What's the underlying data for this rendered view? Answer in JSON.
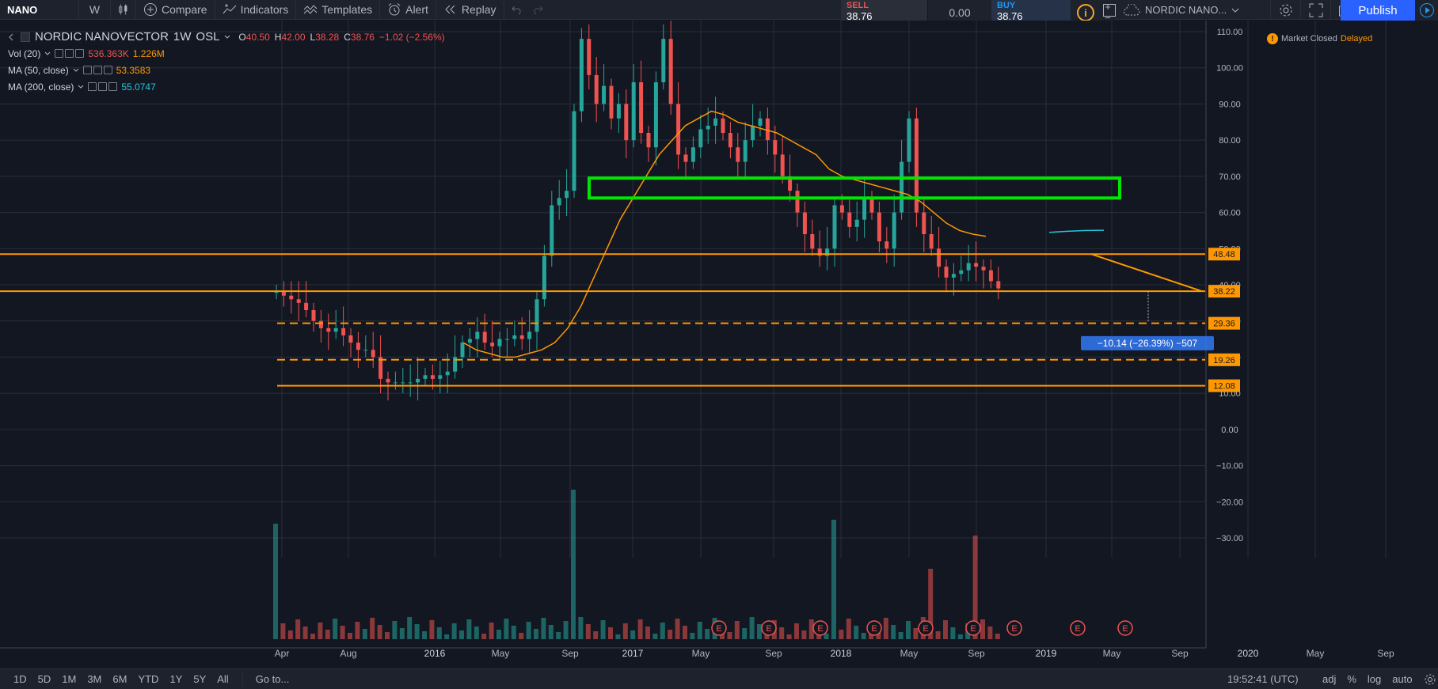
{
  "toolbar": {
    "symbol": "NANO",
    "interval": "W",
    "compare": "Compare",
    "indicators": "Indicators",
    "templates": "Templates",
    "alert": "Alert",
    "replay": "Replay"
  },
  "trade": {
    "sell_label": "SELL",
    "sell_price": "38.76",
    "spread": "0.00",
    "buy_label": "BUY",
    "buy_price": "38.76",
    "plus": "+",
    "minus": "−"
  },
  "layout_name": "NORDIC NANO...",
  "publish": "Publish",
  "legend": {
    "name": "NORDIC NANOVECTOR",
    "interval": "1W",
    "exchange": "OSL",
    "o_label": "O",
    "o": "40.50",
    "h_label": "H",
    "h": "42.00",
    "l_label": "L",
    "l": "38.28",
    "c_label": "C",
    "c": "38.76",
    "change": "−1.02 (−2.56%)",
    "vol_name": "Vol (20)",
    "vol_a": "536.363K",
    "vol_b": "1.226M",
    "ma50_name": "MA (50, close)",
    "ma50_val": "53.3583",
    "ma200_name": "MA (200, close)",
    "ma200_val": "55.0747"
  },
  "market": {
    "status": "Market Closed",
    "delayed": "Delayed"
  },
  "colors": {
    "up": "#26a69a",
    "down": "#ef5350",
    "ma50": "#ff9800",
    "ma200": "#26c6da",
    "level": "#ff9800",
    "zone": "#00e600",
    "background": "#131722"
  },
  "chart_data": {
    "type": "candlestick",
    "price_axis": {
      "ticks": [
        "110.00",
        "100.00",
        "90.00",
        "80.00",
        "70.00",
        "60.00",
        "50.00",
        "40.00",
        "30.00",
        "20.00",
        "10.00",
        "0.00",
        "−10.00",
        "−20.00",
        "−30.00"
      ],
      "range": [
        -33,
        113
      ]
    },
    "time_axis": {
      "ticks": [
        "Apr",
        "Aug",
        "2016",
        "May",
        "Sep",
        "2017",
        "May",
        "Sep",
        "2018",
        "May",
        "Sep",
        "2019",
        "May",
        "Sep",
        "2020",
        "May",
        "Sep"
      ]
    },
    "levels": [
      {
        "label": "48.48",
        "value": 48.48,
        "style": "solid"
      },
      {
        "label": "38.22",
        "value": 38.22,
        "style": "solid"
      },
      {
        "label": "29.36",
        "value": 29.36,
        "style": "dashed"
      },
      {
        "label": "19.26",
        "value": 19.26,
        "style": "dashed"
      },
      {
        "label": "12.08",
        "value": 12.08,
        "style": "solid"
      }
    ],
    "zone": {
      "from": 64,
      "to": 69.5
    },
    "measure_label": "−10.14 (−26.39%) −507",
    "earnings_marker": "E",
    "close_series": [
      38,
      37,
      36,
      35,
      33,
      30,
      28,
      27,
      28,
      26,
      24,
      22,
      22,
      20,
      14,
      13,
      13,
      13,
      13,
      14,
      15,
      14,
      15,
      16,
      20,
      24,
      25,
      27,
      24,
      23,
      25,
      25,
      26,
      25,
      27,
      36,
      48,
      62,
      64,
      66,
      88,
      108,
      98,
      90,
      95,
      86,
      90,
      80,
      96,
      82,
      78,
      96,
      108,
      90,
      76,
      74,
      78,
      83,
      84,
      86,
      82,
      78,
      74,
      80,
      84,
      86,
      80,
      76,
      70,
      66,
      60,
      54,
      50,
      48,
      50,
      62,
      60,
      56,
      58,
      64,
      60,
      52,
      50,
      60,
      74,
      86,
      60,
      54,
      50,
      45,
      42,
      43,
      44,
      46,
      45,
      44,
      41,
      39
    ],
    "ma50_series": [
      24,
      22,
      21,
      20,
      20,
      21,
      22,
      24,
      28,
      34,
      42,
      50,
      58,
      64,
      70,
      76,
      80,
      84,
      86,
      88,
      87,
      85,
      84,
      83,
      82,
      80,
      78,
      76,
      72,
      70,
      69,
      68,
      67,
      66,
      65,
      63,
      60,
      57,
      55,
      54,
      53.4
    ],
    "ma200_series": [
      54.5,
      54.8,
      55,
      55.07
    ]
  },
  "bottom": {
    "ranges": [
      "1D",
      "5D",
      "1M",
      "3M",
      "6M",
      "YTD",
      "1Y",
      "5Y",
      "All"
    ],
    "goto": "Go to...",
    "clock": "19:52:41 (UTC)",
    "adj": "adj",
    "pct": "%",
    "log": "log",
    "auto": "auto"
  }
}
